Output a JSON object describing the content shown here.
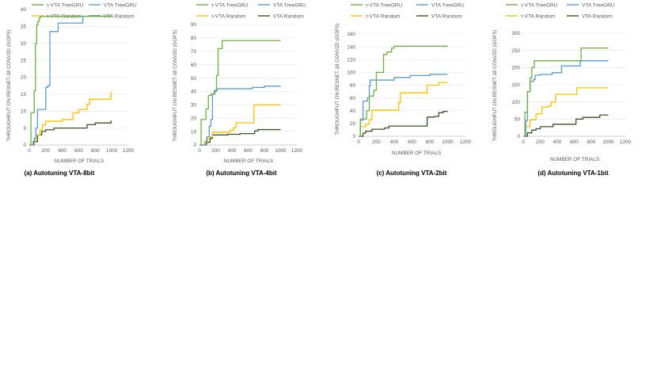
{
  "colors": {
    "tau_treegru": "#70AD47",
    "vta_treegru": "#5B9BD5",
    "tau_random": "#FFC000",
    "vta_random": "#375623",
    "grid": "#e3e3e3",
    "axis_text": "#595959"
  },
  "chart_data": [
    {
      "type": "line",
      "title": "(a) Autotuning VTA-8bit",
      "xlabel": "NUMBER OF TRIALS",
      "ylabel": "THROUGHPUT ON RESNET-18 CONV2D (GOPS)",
      "xlim": [
        0,
        1200
      ],
      "ylim": [
        0,
        40
      ],
      "xticks": [
        0,
        200,
        400,
        600,
        800,
        1000,
        1200
      ],
      "yticks": [
        0,
        5,
        10,
        15,
        20,
        25,
        30,
        35,
        40
      ],
      "legend": [
        "τ-VTA TreeGRU",
        "VTA TreeGRU",
        "τ-VTA Random",
        "VTA Random"
      ],
      "series": [
        {
          "name": "τ-VTA TreeGRU",
          "color": "#70AD47",
          "x": [
            0,
            20,
            20,
            60,
            60,
            75,
            75,
            90,
            90,
            105,
            105,
            120,
            120,
            135,
            135,
            1000
          ],
          "y": [
            0,
            0,
            9.5,
            9.5,
            16,
            16,
            30,
            30,
            35.5,
            35.5,
            36.5,
            36.5,
            37.5,
            37.5,
            38,
            38
          ]
        },
        {
          "name": "VTA TreeGRU",
          "color": "#5B9BD5",
          "x": [
            0,
            60,
            60,
            80,
            80,
            100,
            100,
            200,
            200,
            225,
            225,
            250,
            250,
            350,
            350,
            650,
            650,
            1000
          ],
          "y": [
            0,
            0,
            2,
            2,
            5,
            5,
            10.5,
            10.5,
            17,
            17,
            17.5,
            17.5,
            33.5,
            33.5,
            36,
            36,
            38,
            38
          ]
        },
        {
          "name": "τ-VTA Random",
          "color": "#FFC000",
          "x": [
            0,
            60,
            60,
            90,
            90,
            130,
            130,
            160,
            160,
            200,
            200,
            400,
            400,
            530,
            530,
            600,
            600,
            700,
            700,
            730,
            730,
            990,
            990,
            1000
          ],
          "y": [
            0,
            0,
            1.5,
            1.5,
            3,
            3,
            4.5,
            4.5,
            6,
            6,
            7,
            7,
            7.5,
            7.5,
            9.5,
            9.5,
            10.5,
            10.5,
            12,
            12,
            13.5,
            13.5,
            15.5,
            15.5
          ]
        },
        {
          "name": "VTA Random",
          "color": "#375623",
          "x": [
            0,
            50,
            50,
            100,
            100,
            150,
            150,
            200,
            200,
            300,
            300,
            700,
            700,
            800,
            800,
            990,
            990,
            1000
          ],
          "y": [
            0,
            0,
            1,
            1,
            3,
            3,
            4,
            4,
            4.5,
            4.5,
            5,
            5,
            6,
            6,
            6.5,
            6.5,
            7,
            7
          ]
        }
      ]
    },
    {
      "type": "line",
      "title": "(b) Autotuning VTA-4bit",
      "xlabel": "NUMBER OF TRIALS",
      "ylabel": "THROUGHPUT ON RESNET-18 CONV2D (GOPS)",
      "xlim": [
        0,
        1200
      ],
      "ylim": [
        0,
        90
      ],
      "xticks": [
        0,
        200,
        400,
        600,
        800,
        1000,
        1200
      ],
      "yticks": [
        0,
        10,
        20,
        30,
        40,
        50,
        60,
        70,
        80,
        90
      ],
      "legend": [
        "τ-VTA TreeGRU",
        "VTA TreeGRU",
        "τ-VTA Random",
        "VTA Random"
      ],
      "series": [
        {
          "name": "τ-VTA TreeGRU",
          "color": "#70AD47",
          "x": [
            0,
            20,
            20,
            80,
            80,
            110,
            110,
            140,
            140,
            180,
            180,
            210,
            210,
            230,
            230,
            280,
            280,
            1000
          ],
          "y": [
            0,
            0,
            19,
            19,
            27,
            27,
            37,
            37,
            38,
            38,
            40,
            40,
            52,
            52,
            72,
            72,
            78,
            78
          ]
        },
        {
          "name": "VTA TreeGRU",
          "color": "#5B9BD5",
          "x": [
            0,
            90,
            90,
            120,
            120,
            140,
            140,
            160,
            160,
            190,
            190,
            220,
            220,
            650,
            650,
            800,
            800,
            1000
          ],
          "y": [
            0,
            0,
            6,
            6,
            14,
            14,
            19,
            19,
            38,
            38,
            41,
            41,
            42,
            42,
            43,
            43,
            44,
            44
          ]
        },
        {
          "name": "τ-VTA Random",
          "color": "#FFC000",
          "x": [
            0,
            60,
            60,
            100,
            100,
            160,
            160,
            380,
            380,
            420,
            420,
            450,
            450,
            670,
            670,
            1000
          ],
          "y": [
            0,
            0,
            3,
            3,
            6,
            6,
            9.5,
            9.5,
            11,
            11,
            13,
            13,
            16.5,
            16.5,
            30,
            30
          ]
        },
        {
          "name": "VTA Random",
          "color": "#375623",
          "x": [
            0,
            80,
            80,
            130,
            130,
            160,
            160,
            350,
            350,
            500,
            500,
            680,
            680,
            720,
            720,
            1000
          ],
          "y": [
            0,
            0,
            2,
            2,
            5,
            5,
            7.5,
            7.5,
            8,
            8,
            8.5,
            8.5,
            10.5,
            10.5,
            11.5,
            11.5
          ]
        }
      ]
    },
    {
      "type": "line",
      "title": "(c) Autotuning VTA-2bit",
      "xlabel": "NUMBER OF TRIALS",
      "ylabel": "THROUGHPUT ON RESNET-18 CONV2D (GOPS)",
      "xlim": [
        0,
        1200
      ],
      "ylim": [
        0,
        160
      ],
      "xticks": [
        0,
        200,
        400,
        600,
        800,
        1000,
        1200
      ],
      "yticks": [
        0,
        20,
        40,
        60,
        80,
        100,
        120,
        140,
        160
      ],
      "legend": [
        "τ-VTA TreeGRU",
        "VTA TreeGRU",
        "τ-VTA Random",
        "VTA Random"
      ],
      "series": [
        {
          "name": "τ-VTA TreeGRU",
          "color": "#70AD47",
          "x": [
            0,
            20,
            20,
            90,
            90,
            120,
            120,
            170,
            170,
            200,
            200,
            280,
            280,
            320,
            320,
            370,
            370,
            400,
            400,
            1000
          ],
          "y": [
            0,
            0,
            27,
            27,
            40,
            40,
            63,
            63,
            72,
            72,
            100,
            100,
            128,
            128,
            132,
            132,
            138,
            138,
            141,
            141
          ]
        },
        {
          "name": "VTA TreeGRU",
          "color": "#5B9BD5",
          "x": [
            0,
            20,
            20,
            50,
            50,
            100,
            100,
            120,
            120,
            130,
            130,
            400,
            400,
            580,
            580,
            800,
            800,
            1000
          ],
          "y": [
            0,
            0,
            25,
            25,
            55,
            55,
            60,
            60,
            79,
            79,
            88,
            88,
            92,
            92,
            95,
            95,
            97,
            97
          ]
        },
        {
          "name": "τ-VTA Random",
          "color": "#FFC000",
          "x": [
            0,
            20,
            20,
            80,
            80,
            120,
            120,
            150,
            150,
            450,
            450,
            470,
            470,
            770,
            770,
            900,
            900,
            1000
          ],
          "y": [
            0,
            0,
            15,
            15,
            19,
            19,
            26,
            26,
            41,
            41,
            53,
            53,
            68,
            68,
            80,
            80,
            84,
            84
          ]
        },
        {
          "name": "VTA Random",
          "color": "#375623",
          "x": [
            0,
            50,
            50,
            80,
            80,
            150,
            150,
            290,
            290,
            340,
            340,
            770,
            770,
            850,
            850,
            900,
            900,
            950,
            950,
            1000
          ],
          "y": [
            0,
            0,
            5,
            5,
            8,
            8,
            11,
            11,
            13,
            13,
            16,
            16,
            30,
            30,
            31,
            31,
            37,
            37,
            39,
            39
          ]
        }
      ]
    },
    {
      "type": "line",
      "title": "(d) Autotuning VTA-1bit",
      "xlabel": "NUMBER OF TRIALS",
      "ylabel": "THROUGHPUT ON RESNET-18 CONV2D (GOPS)",
      "xlim": [
        0,
        1200
      ],
      "ylim": [
        0,
        300
      ],
      "xticks": [
        0,
        200,
        400,
        600,
        800,
        1000,
        1200
      ],
      "yticks": [
        0,
        50,
        100,
        150,
        200,
        250,
        300
      ],
      "legend": [
        "τ-VTA TreeGRU",
        "VTA TreeGRU",
        "τ-VTA Random",
        "VTA Random"
      ],
      "series": [
        {
          "name": "τ-VTA TreeGRU",
          "color": "#70AD47",
          "x": [
            0,
            20,
            20,
            50,
            50,
            80,
            80,
            100,
            100,
            130,
            130,
            680,
            680,
            1000
          ],
          "y": [
            0,
            0,
            70,
            70,
            130,
            130,
            170,
            170,
            200,
            200,
            220,
            220,
            257,
            257
          ]
        },
        {
          "name": "VTA TreeGRU",
          "color": "#5B9BD5",
          "x": [
            0,
            30,
            30,
            50,
            50,
            80,
            80,
            120,
            120,
            140,
            140,
            200,
            200,
            340,
            340,
            450,
            450,
            670,
            670,
            1000
          ],
          "y": [
            0,
            0,
            45,
            45,
            130,
            130,
            160,
            160,
            165,
            165,
            178,
            178,
            180,
            180,
            185,
            185,
            205,
            205,
            220,
            220
          ]
        },
        {
          "name": "τ-VTA Random",
          "color": "#FFC000",
          "x": [
            0,
            30,
            30,
            80,
            80,
            150,
            150,
            220,
            220,
            290,
            290,
            330,
            330,
            380,
            380,
            630,
            630,
            1000
          ],
          "y": [
            0,
            0,
            28,
            28,
            48,
            48,
            65,
            65,
            85,
            85,
            88,
            88,
            100,
            100,
            122,
            122,
            141,
            141
          ]
        },
        {
          "name": "VTA Random",
          "color": "#375623",
          "x": [
            0,
            50,
            50,
            100,
            100,
            150,
            150,
            200,
            200,
            350,
            350,
            620,
            620,
            700,
            700,
            900,
            900,
            1000
          ],
          "y": [
            0,
            0,
            10,
            10,
            18,
            18,
            22,
            22,
            28,
            28,
            35,
            35,
            50,
            50,
            55,
            55,
            62,
            62
          ]
        }
      ]
    }
  ]
}
